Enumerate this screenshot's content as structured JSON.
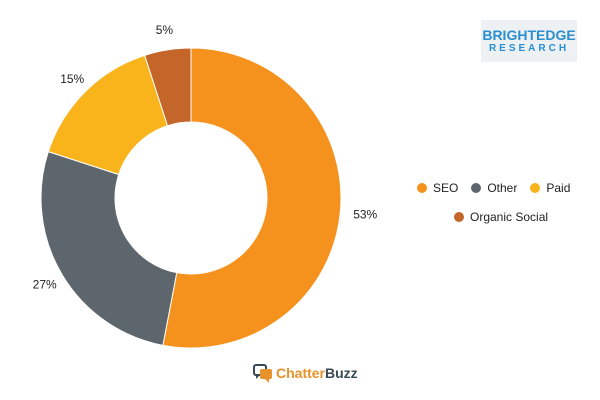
{
  "chart_data": {
    "type": "pie",
    "variant": "donut",
    "categories": [
      "SEO",
      "Other",
      "Paid",
      "Organic Social"
    ],
    "values": [
      53,
      27,
      15,
      5
    ],
    "value_labels": [
      "53%",
      "27%",
      "15%",
      "5%"
    ],
    "colors": [
      "#f5921e",
      "#5d666c",
      "#f9b41c",
      "#c4652a"
    ],
    "title": "",
    "legend_position": "right"
  },
  "legend": {
    "items": [
      {
        "label": "SEO",
        "color": "#f5921e"
      },
      {
        "label": "Other",
        "color": "#5d666c"
      },
      {
        "label": "Paid",
        "color": "#f9b41c"
      },
      {
        "label": "Organic Social",
        "color": "#c4652a"
      }
    ]
  },
  "logos": {
    "brightedge": {
      "line1": "BRIGHTEDGE",
      "line2": "RESEARCH",
      "color": "#2a8fd0"
    },
    "chatterbuzz": {
      "part1": "Chatter",
      "part2": "Buzz",
      "icon": "chat-bubbles-icon"
    }
  }
}
